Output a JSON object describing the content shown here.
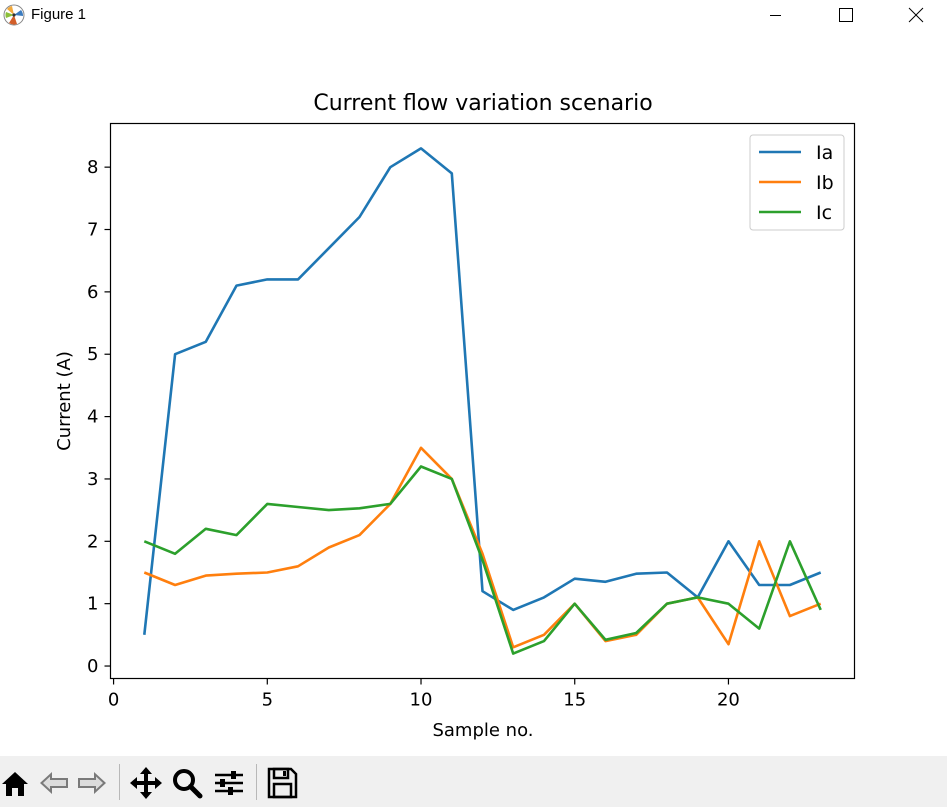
{
  "window": {
    "title": "Figure 1",
    "buttons": [
      "minimize",
      "maximize",
      "close"
    ]
  },
  "toolbar": {
    "tools": [
      {
        "name": "home-icon",
        "action": "home"
      },
      {
        "name": "back-arrow-icon",
        "action": "back"
      },
      {
        "name": "forward-arrow-icon",
        "action": "forward"
      },
      {
        "name": "pan-icon",
        "action": "pan"
      },
      {
        "name": "zoom-icon",
        "action": "zoom"
      },
      {
        "name": "configure-subplots-icon",
        "action": "subplots"
      },
      {
        "name": "save-icon",
        "action": "save"
      }
    ]
  },
  "chart_data": {
    "type": "line",
    "title": "Current flow variation scenario",
    "xlabel": "Sample no.",
    "ylabel": "Current (A)",
    "xlim": [
      -0.1,
      24.1
    ],
    "ylim": [
      -0.2,
      8.7
    ],
    "xticks": [
      0,
      5,
      10,
      15,
      20
    ],
    "yticks": [
      0,
      1,
      2,
      3,
      4,
      5,
      6,
      7,
      8
    ],
    "grid": false,
    "legend_position": "top-right",
    "x": [
      1,
      2,
      3,
      4,
      5,
      6,
      7,
      8,
      9,
      10,
      11,
      12,
      13,
      14,
      15,
      16,
      17,
      18,
      19,
      20,
      21,
      22,
      23
    ],
    "series": [
      {
        "name": "Ia",
        "color": "#1f77b4",
        "values": [
          0.5,
          5.0,
          5.2,
          6.1,
          6.2,
          6.2,
          6.7,
          7.2,
          8.0,
          8.3,
          7.9,
          1.2,
          0.9,
          1.1,
          1.4,
          1.35,
          1.48,
          1.5,
          1.1,
          2.0,
          1.3,
          1.3,
          1.5
        ]
      },
      {
        "name": "Ib",
        "color": "#ff7f0e",
        "values": [
          1.5,
          1.3,
          1.45,
          1.48,
          1.5,
          1.6,
          1.9,
          2.1,
          2.6,
          3.5,
          3.0,
          1.8,
          0.3,
          0.5,
          1.0,
          0.4,
          0.5,
          1.0,
          1.1,
          0.35,
          2.0,
          0.8,
          1.0
        ]
      },
      {
        "name": "Ic",
        "color": "#2ca02c",
        "values": [
          2.0,
          1.8,
          2.2,
          2.1,
          2.6,
          2.55,
          2.5,
          2.53,
          2.6,
          3.2,
          3.0,
          1.7,
          0.2,
          0.4,
          1.0,
          0.42,
          0.53,
          1.0,
          1.1,
          1.0,
          0.6,
          2.0,
          0.9
        ]
      }
    ]
  }
}
